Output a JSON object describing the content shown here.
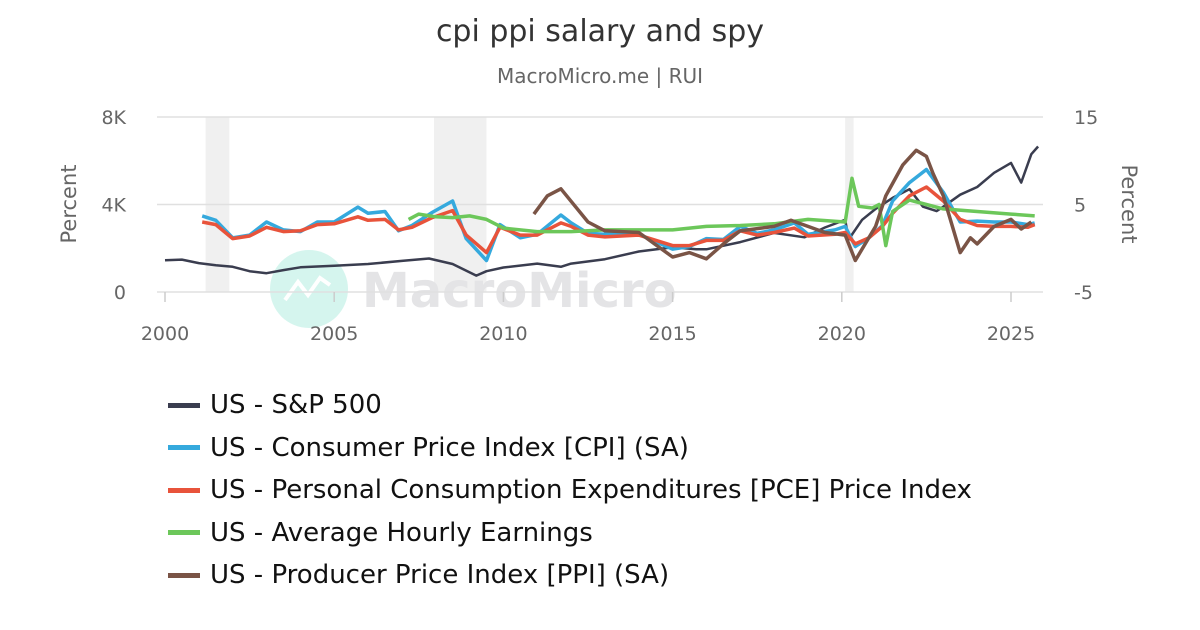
{
  "chart_data": {
    "type": "line",
    "title": "cpi ppi salary and spy",
    "subtitle": "MacroMicro.me | RUI",
    "watermark": "MacroMicro",
    "x_axis": {
      "range": [
        2000,
        2026
      ],
      "ticks": [
        "2000",
        "2005",
        "2010",
        "2015",
        "2020",
        "2025"
      ]
    },
    "y_left": {
      "label": "Percent",
      "range": [
        0,
        8000
      ],
      "ticks": [
        "0",
        "4K",
        "8K"
      ]
    },
    "y_right": {
      "label": "Percent",
      "range": [
        -5,
        15
      ],
      "ticks": [
        "-5",
        "5",
        "15"
      ]
    },
    "grid": true,
    "legend_position": "bottom",
    "recession_bands": [
      [
        2001.2,
        2001.9
      ],
      [
        2007.95,
        2009.5
      ],
      [
        2020.1,
        2020.35
      ]
    ],
    "series": [
      {
        "name": "US - S&P 500",
        "axis": "left",
        "color": "#3a3d4f",
        "points": [
          [
            2000,
            1450
          ],
          [
            2000.5,
            1480
          ],
          [
            2001,
            1320
          ],
          [
            2001.5,
            1220
          ],
          [
            2002,
            1150
          ],
          [
            2002.5,
            950
          ],
          [
            2003,
            860
          ],
          [
            2003.5,
            1000
          ],
          [
            2004,
            1130
          ],
          [
            2005,
            1200
          ],
          [
            2006,
            1280
          ],
          [
            2007,
            1420
          ],
          [
            2007.8,
            1530
          ],
          [
            2008.5,
            1280
          ],
          [
            2009.2,
            750
          ],
          [
            2009.5,
            950
          ],
          [
            2010,
            1120
          ],
          [
            2011,
            1300
          ],
          [
            2011.7,
            1150
          ],
          [
            2012,
            1300
          ],
          [
            2013,
            1500
          ],
          [
            2014,
            1850
          ],
          [
            2015,
            2050
          ],
          [
            2015.7,
            1950
          ],
          [
            2016,
            1950
          ],
          [
            2017,
            2280
          ],
          [
            2018,
            2700
          ],
          [
            2018.9,
            2500
          ],
          [
            2019.5,
            2950
          ],
          [
            2020.1,
            3300
          ],
          [
            2020.2,
            2400
          ],
          [
            2020.6,
            3300
          ],
          [
            2021,
            3800
          ],
          [
            2021.5,
            4300
          ],
          [
            2022,
            4700
          ],
          [
            2022.4,
            3900
          ],
          [
            2022.8,
            3700
          ],
          [
            2023,
            3900
          ],
          [
            2023.5,
            4450
          ],
          [
            2024,
            4800
          ],
          [
            2024.5,
            5450
          ],
          [
            2025,
            5900
          ],
          [
            2025.3,
            5000
          ],
          [
            2025.6,
            6300
          ],
          [
            2025.8,
            6650
          ]
        ]
      },
      {
        "name": "US - Consumer Price Index [CPI] (SA)",
        "axis": "right",
        "color": "#35a9dd",
        "points": [
          [
            2001.1,
            3.7
          ],
          [
            2001.5,
            3.2
          ],
          [
            2002,
            1.2
          ],
          [
            2002.5,
            1.5
          ],
          [
            2003,
            3.0
          ],
          [
            2003.5,
            2.1
          ],
          [
            2004,
            1.9
          ],
          [
            2004.5,
            3.0
          ],
          [
            2005,
            3.0
          ],
          [
            2005.7,
            4.7
          ],
          [
            2006,
            4.0
          ],
          [
            2006.5,
            4.2
          ],
          [
            2006.9,
            2.0
          ],
          [
            2007.3,
            2.6
          ],
          [
            2007.9,
            4.1
          ],
          [
            2008.5,
            5.4
          ],
          [
            2008.9,
            1.1
          ],
          [
            2009.5,
            -1.4
          ],
          [
            2009.9,
            2.7
          ],
          [
            2010.5,
            1.2
          ],
          [
            2011,
            1.6
          ],
          [
            2011.7,
            3.8
          ],
          [
            2012,
            2.9
          ],
          [
            2012.5,
            1.7
          ],
          [
            2013,
            1.6
          ],
          [
            2014,
            1.6
          ],
          [
            2015,
            -0.1
          ],
          [
            2015.5,
            0.2
          ],
          [
            2016,
            1.1
          ],
          [
            2016.5,
            1.0
          ],
          [
            2017,
            2.5
          ],
          [
            2017.5,
            1.7
          ],
          [
            2018,
            2.1
          ],
          [
            2018.6,
            2.9
          ],
          [
            2019,
            1.6
          ],
          [
            2019.8,
            2.1
          ],
          [
            2020.1,
            2.5
          ],
          [
            2020.4,
            0.2
          ],
          [
            2020.8,
            1.2
          ],
          [
            2021.2,
            2.6
          ],
          [
            2021.5,
            5.4
          ],
          [
            2022,
            7.5
          ],
          [
            2022.5,
            9.0
          ],
          [
            2023,
            6.4
          ],
          [
            2023.5,
            3.0
          ],
          [
            2024,
            3.1
          ],
          [
            2024.5,
            3.0
          ],
          [
            2025,
            3.0
          ],
          [
            2025.5,
            2.7
          ],
          [
            2025.7,
            2.9
          ]
        ]
      },
      {
        "name": "US - Personal Consumption Expenditures [PCE] Price Index",
        "axis": "right",
        "color": "#e8533b",
        "points": [
          [
            2001.1,
            3.0
          ],
          [
            2001.5,
            2.7
          ],
          [
            2002,
            1.1
          ],
          [
            2002.5,
            1.4
          ],
          [
            2003,
            2.4
          ],
          [
            2003.5,
            1.9
          ],
          [
            2004,
            2.0
          ],
          [
            2004.5,
            2.7
          ],
          [
            2005,
            2.8
          ],
          [
            2005.7,
            3.6
          ],
          [
            2006,
            3.2
          ],
          [
            2006.5,
            3.3
          ],
          [
            2006.9,
            2.1
          ],
          [
            2007.3,
            2.4
          ],
          [
            2007.9,
            3.5
          ],
          [
            2008.5,
            4.3
          ],
          [
            2008.9,
            1.5
          ],
          [
            2009.5,
            -0.5
          ],
          [
            2009.9,
            2.4
          ],
          [
            2010.5,
            1.5
          ],
          [
            2011,
            1.5
          ],
          [
            2011.7,
            2.9
          ],
          [
            2012,
            2.5
          ],
          [
            2012.5,
            1.5
          ],
          [
            2013,
            1.3
          ],
          [
            2014,
            1.5
          ],
          [
            2015,
            0.3
          ],
          [
            2015.5,
            0.3
          ],
          [
            2016,
            0.9
          ],
          [
            2016.5,
            0.9
          ],
          [
            2017,
            2.0
          ],
          [
            2017.5,
            1.5
          ],
          [
            2018,
            1.8
          ],
          [
            2018.6,
            2.3
          ],
          [
            2019,
            1.4
          ],
          [
            2019.8,
            1.6
          ],
          [
            2020.1,
            1.8
          ],
          [
            2020.4,
            0.5
          ],
          [
            2020.8,
            1.2
          ],
          [
            2021.2,
            2.5
          ],
          [
            2021.5,
            4.0
          ],
          [
            2022,
            6.0
          ],
          [
            2022.5,
            7.0
          ],
          [
            2023,
            5.4
          ],
          [
            2023.5,
            3.3
          ],
          [
            2024,
            2.6
          ],
          [
            2024.5,
            2.5
          ],
          [
            2025,
            2.5
          ],
          [
            2025.5,
            2.4
          ],
          [
            2025.7,
            2.7
          ]
        ]
      },
      {
        "name": "US - Average Hourly Earnings",
        "axis": "right",
        "color": "#6cc75a",
        "points": [
          [
            2007.2,
            3.3
          ],
          [
            2007.5,
            3.9
          ],
          [
            2008,
            3.6
          ],
          [
            2008.5,
            3.5
          ],
          [
            2009,
            3.7
          ],
          [
            2009.5,
            3.3
          ],
          [
            2010,
            2.3
          ],
          [
            2011,
            1.9
          ],
          [
            2012,
            1.9
          ],
          [
            2013,
            2.1
          ],
          [
            2014,
            2.1
          ],
          [
            2015,
            2.1
          ],
          [
            2016,
            2.5
          ],
          [
            2017,
            2.6
          ],
          [
            2018,
            2.8
          ],
          [
            2019,
            3.3
          ],
          [
            2020.1,
            3.0
          ],
          [
            2020.3,
            8.0
          ],
          [
            2020.5,
            4.8
          ],
          [
            2020.9,
            4.6
          ],
          [
            2021.1,
            5.0
          ],
          [
            2021.3,
            0.3
          ],
          [
            2021.5,
            4.2
          ],
          [
            2022,
            5.5
          ],
          [
            2022.5,
            5.0
          ],
          [
            2023,
            4.5
          ],
          [
            2024,
            4.2
          ],
          [
            2025,
            3.9
          ],
          [
            2025.7,
            3.7
          ]
        ]
      },
      {
        "name": "US - Producer Price Index [PPI] (SA)",
        "axis": "right",
        "color": "#7a5446",
        "points": [
          [
            2010.9,
            3.9
          ],
          [
            2011.3,
            6.0
          ],
          [
            2011.7,
            6.8
          ],
          [
            2012.5,
            3.0
          ],
          [
            2013,
            2.0
          ],
          [
            2014,
            1.8
          ],
          [
            2015,
            -1.0
          ],
          [
            2015.5,
            -0.5
          ],
          [
            2016,
            -1.2
          ],
          [
            2016.5,
            0.5
          ],
          [
            2017,
            2.0
          ],
          [
            2018,
            2.5
          ],
          [
            2018.5,
            3.2
          ],
          [
            2019,
            2.5
          ],
          [
            2019.5,
            1.8
          ],
          [
            2020.1,
            1.5
          ],
          [
            2020.4,
            -1.4
          ],
          [
            2021,
            2.5
          ],
          [
            2021.3,
            6.0
          ],
          [
            2021.8,
            9.5
          ],
          [
            2022.2,
            11.2
          ],
          [
            2022.5,
            10.5
          ],
          [
            2022.7,
            8.5
          ],
          [
            2023,
            6.0
          ],
          [
            2023.5,
            -0.5
          ],
          [
            2023.8,
            1.2
          ],
          [
            2024,
            0.5
          ],
          [
            2024.5,
            2.5
          ],
          [
            2025,
            3.3
          ],
          [
            2025.3,
            2.2
          ],
          [
            2025.6,
            3.0
          ]
        ]
      }
    ]
  }
}
